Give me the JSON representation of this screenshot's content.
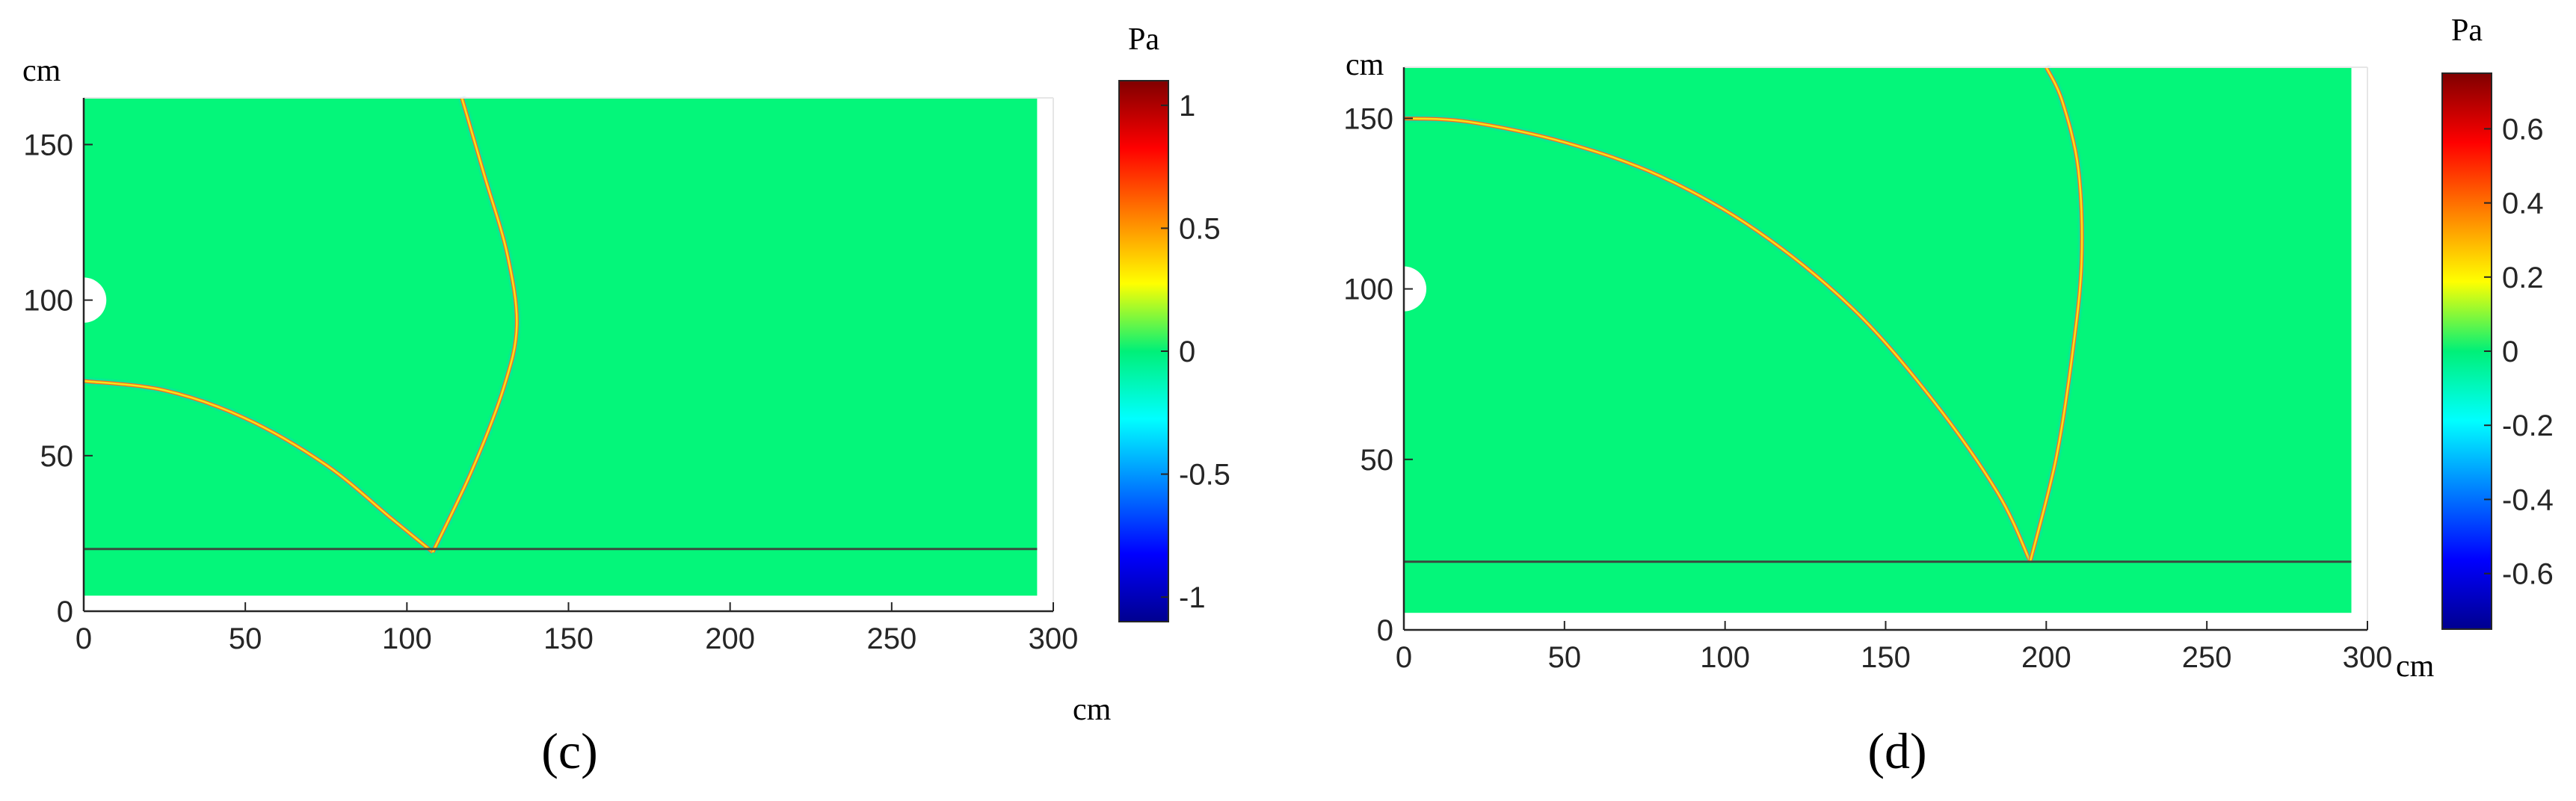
{
  "colors": {
    "field": "#04f67a",
    "axis": "#262626",
    "tick_text": "#262626",
    "label_text": "#000000",
    "wave_core": "#f2e41a",
    "wave_edge": "#ff6a1a",
    "wave_cool": "#18c8d8",
    "boundary_line": "#3a4a3e",
    "hole": "#ffffff"
  },
  "colormap": [
    "#00008f",
    "#0000ff",
    "#0080ff",
    "#00ffff",
    "#00f078",
    "#ffff00",
    "#ff8000",
    "#ff0000",
    "#800000"
  ],
  "chart_data": [
    {
      "type": "heatmap",
      "panel_label": "(c)",
      "panel_letter": "c",
      "x_unit": "cm",
      "y_unit": "cm",
      "colorbar_unit": "Pa",
      "xlim": [
        0,
        300
      ],
      "ylim": [
        0,
        165
      ],
      "xticks": [
        0,
        50,
        100,
        150,
        200,
        250,
        300
      ],
      "yticks": [
        0,
        50,
        100,
        150
      ],
      "domain": {
        "x": [
          0,
          295
        ],
        "y": [
          5,
          165
        ]
      },
      "clim": [
        -1.1,
        1.1
      ],
      "colorbar_ticks": [
        {
          "value": 1,
          "label": "1"
        },
        {
          "value": 0.5,
          "label": "0.5"
        },
        {
          "value": 0,
          "label": "0"
        },
        {
          "value": -0.5,
          "label": "-0.5"
        },
        {
          "value": -1,
          "label": "-1"
        }
      ],
      "source": {
        "x": 0,
        "y": 100,
        "radius_cm": 7
      },
      "boundary_line_y": 20,
      "wavefronts": [
        {
          "name": "direct-wave",
          "points": [
            [
              0,
              74
            ],
            [
              25,
              71
            ],
            [
              50,
              62
            ],
            [
              75,
              47
            ],
            [
              95,
              30
            ],
            [
              108,
              19
            ]
          ]
        },
        {
          "name": "reflected-wave",
          "points": [
            [
              108,
              19
            ],
            [
              120,
              45
            ],
            [
              130,
              72
            ],
            [
              134,
              92
            ],
            [
              131,
              115
            ],
            [
              124,
              140
            ],
            [
              117,
              165
            ]
          ]
        }
      ]
    },
    {
      "type": "heatmap",
      "panel_label": "(d)",
      "panel_letter": "d",
      "x_unit": "cm",
      "y_unit": "cm",
      "colorbar_unit": "Pa",
      "xlim": [
        0,
        300
      ],
      "ylim": [
        0,
        165
      ],
      "xticks": [
        0,
        50,
        100,
        150,
        200,
        250,
        300
      ],
      "yticks": [
        0,
        50,
        100,
        150
      ],
      "domain": {
        "x": [
          0,
          295
        ],
        "y": [
          5,
          165
        ]
      },
      "clim": [
        -0.75,
        0.75
      ],
      "colorbar_ticks": [
        {
          "value": 0.6,
          "label": "0.6"
        },
        {
          "value": 0.4,
          "label": "0.4"
        },
        {
          "value": 0.2,
          "label": "0.2"
        },
        {
          "value": 0,
          "label": "0"
        },
        {
          "value": -0.2,
          "label": "-0.2"
        },
        {
          "value": -0.4,
          "label": "-0.4"
        },
        {
          "value": -0.6,
          "label": "-0.6"
        }
      ],
      "source": {
        "x": 0,
        "y": 100,
        "radius_cm": 7
      },
      "boundary_line_y": 20,
      "wavefronts": [
        {
          "name": "direct-wave",
          "points": [
            [
              0,
              150
            ],
            [
              20,
              149
            ],
            [
              50,
              143
            ],
            [
              80,
              133
            ],
            [
              110,
              117
            ],
            [
              140,
              94
            ],
            [
              165,
              67
            ],
            [
              185,
              40
            ],
            [
              195,
              20
            ]
          ]
        },
        {
          "name": "reflected-wave",
          "points": [
            [
              195,
              20
            ],
            [
              203,
              50
            ],
            [
              208,
              80
            ],
            [
              211,
              108
            ],
            [
              210,
              135
            ],
            [
              205,
              155
            ],
            [
              200,
              165
            ]
          ]
        }
      ]
    }
  ]
}
